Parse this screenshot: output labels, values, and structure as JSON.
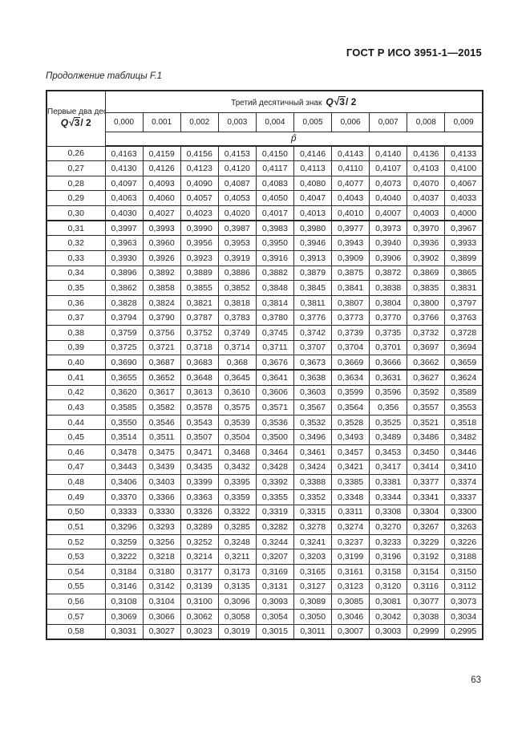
{
  "page": {
    "standard_ref": "ГОСТ Р ИСО 3951-1—2015",
    "table_caption": "Продолжение таблицы F.1",
    "page_number": "63"
  },
  "table": {
    "row_header_title": "Первые два десятичных знака",
    "col_header_title": "Третий десятичный знак",
    "formula": {
      "q": "Q",
      "radical": "√",
      "radicand": "3",
      "divisor": "/ 2"
    },
    "phat": "p̂",
    "columns": [
      "0,000",
      "0.001",
      "0,002",
      "0,003",
      "0,004",
      "0,005",
      "0,006",
      "0,007",
      "0,008",
      "0,009"
    ],
    "rows": [
      {
        "label": "0,26",
        "values": [
          "0,4163",
          "0,4159",
          "0,4156",
          "0,4153",
          "0,4150",
          "0,4146",
          "0,4143",
          "0,4140",
          "0,4136",
          "0,4133"
        ]
      },
      {
        "label": "0,27",
        "values": [
          "0,4130",
          "0,4126",
          "0,4123",
          "0,4120",
          "0,4117",
          "0,4113",
          "0,4110",
          "0,4107",
          "0,4103",
          "0,4100"
        ]
      },
      {
        "label": "0,28",
        "values": [
          "0,4097",
          "0,4093",
          "0,4090",
          "0,4087",
          "0,4083",
          "0,4080",
          "0,4077",
          "0,4073",
          "0,4070",
          "0,4067"
        ]
      },
      {
        "label": "0,29",
        "values": [
          "0,4063",
          "0,4060",
          "0,4057",
          "0,4053",
          "0,4050",
          "0,4047",
          "0,4043",
          "0,4040",
          "0,4037",
          "0,4033"
        ]
      },
      {
        "label": "0,30",
        "values": [
          "0,4030",
          "0,4027",
          "0,4023",
          "0,4020",
          "0,4017",
          "0,4013",
          "0,4010",
          "0,4007",
          "0,4003",
          "0,4000"
        ],
        "group_end": true
      },
      {
        "label": "0,31",
        "values": [
          "0,3997",
          "0,3993",
          "0,3990",
          "0,3987",
          "0,3983",
          "0,3980",
          "0,3977",
          "0,3973",
          "0,3970",
          "0,3967"
        ]
      },
      {
        "label": "0,32",
        "values": [
          "0,3963",
          "0,3960",
          "0,3956",
          "0,3953",
          "0,3950",
          "0,3946",
          "0,3943",
          "0,3940",
          "0,3936",
          "0,3933"
        ]
      },
      {
        "label": "0,33",
        "values": [
          "0,3930",
          "0,3926",
          "0,3923",
          "0,3919",
          "0,3916",
          "0,3913",
          "0,3909",
          "0,3906",
          "0,3902",
          "0,3899"
        ]
      },
      {
        "label": "0,34",
        "values": [
          "0,3896",
          "0,3892",
          "0,3889",
          "0,3886",
          "0,3882",
          "0,3879",
          "0,3875",
          "0,3872",
          "0,3869",
          "0,3865"
        ]
      },
      {
        "label": "0,35",
        "values": [
          "0,3862",
          "0,3858",
          "0,3855",
          "0,3852",
          "0,3848",
          "0,3845",
          "0,3841",
          "0,3838",
          "0,3835",
          "0,3831"
        ]
      },
      {
        "label": "0,36",
        "values": [
          "0,3828",
          "0,3824",
          "0,3821",
          "0,3818",
          "0,3814",
          "0,3811",
          "0,3807",
          "0,3804",
          "0,3800",
          "0,3797"
        ]
      },
      {
        "label": "0,37",
        "values": [
          "0,3794",
          "0,3790",
          "0,3787",
          "0,3783",
          "0,3780",
          "0,3776",
          "0,3773",
          "0,3770",
          "0,3766",
          "0,3763"
        ]
      },
      {
        "label": "0,38",
        "values": [
          "0,3759",
          "0,3756",
          "0,3752",
          "0,3749",
          "0,3745",
          "0,3742",
          "0,3739",
          "0,3735",
          "0,3732",
          "0,3728"
        ]
      },
      {
        "label": "0,39",
        "values": [
          "0,3725",
          "0,3721",
          "0,3718",
          "0,3714",
          "0,3711",
          "0,3707",
          "0,3704",
          "0,3701",
          "0,3697",
          "0,3694"
        ]
      },
      {
        "label": "0,40",
        "values": [
          "0,3690",
          "0,3687",
          "0,3683",
          "0,368",
          "0,3676",
          "0,3673",
          "0,3669",
          "0,3666",
          "0,3662",
          "0,3659"
        ],
        "group_end": true
      },
      {
        "label": "0,41",
        "values": [
          "0,3655",
          "0,3652",
          "0,3648",
          "0,3645",
          "0,3641",
          "0,3638",
          "0,3634",
          "0,3631",
          "0,3627",
          "0,3624"
        ]
      },
      {
        "label": "0,42",
        "values": [
          "0,3620",
          "0,3617",
          "0,3613",
          "0,3610",
          "0,3606",
          "0,3603",
          "0,3599",
          "0,3596",
          "0,3592",
          "0,3589"
        ]
      },
      {
        "label": "0,43",
        "values": [
          "0,3585",
          "0,3582",
          "0,3578",
          "0,3575",
          "0,3571",
          "0,3567",
          "0,3564",
          "0,356",
          "0,3557",
          "0,3553"
        ]
      },
      {
        "label": "0,44",
        "values": [
          "0,3550",
          "0,3546",
          "0,3543",
          "0,3539",
          "0,3536",
          "0,3532",
          "0,3528",
          "0,3525",
          "0,3521",
          "0,3518"
        ]
      },
      {
        "label": "0,45",
        "values": [
          "0,3514",
          "0,3511",
          "0,3507",
          "0,3504",
          "0,3500",
          "0,3496",
          "0,3493",
          "0,3489",
          "0,3486",
          "0,3482"
        ]
      },
      {
        "label": "0,46",
        "values": [
          "0,3478",
          "0,3475",
          "0,3471",
          "0,3468",
          "0,3464",
          "0,3461",
          "0,3457",
          "0,3453",
          "0,3450",
          "0,3446"
        ]
      },
      {
        "label": "0,47",
        "values": [
          "0,3443",
          "0,3439",
          "0,3435",
          "0,3432",
          "0,3428",
          "0,3424",
          "0,3421",
          "0,3417",
          "0,3414",
          "0,3410"
        ]
      },
      {
        "label": "0,48",
        "values": [
          "0,3406",
          "0,3403",
          "0,3399",
          "0,3395",
          "0,3392",
          "0,3388",
          "0,3385",
          "0,3381",
          "0,3377",
          "0,3374"
        ]
      },
      {
        "label": "0,49",
        "values": [
          "0,3370",
          "0,3366",
          "0,3363",
          "0,3359",
          "0,3355",
          "0,3352",
          "0,3348",
          "0,3344",
          "0,3341",
          "0,3337"
        ]
      },
      {
        "label": "0,50",
        "values": [
          "0,3333",
          "0,3330",
          "0,3326",
          "0,3322",
          "0,3319",
          "0,3315",
          "0,3311",
          "0,3308",
          "0,3304",
          "0,3300"
        ],
        "group_end": true
      },
      {
        "label": "0,51",
        "values": [
          "0,3296",
          "0,3293",
          "0,3289",
          "0,3285",
          "0,3282",
          "0,3278",
          "0,3274",
          "0,3270",
          "0,3267",
          "0,3263"
        ]
      },
      {
        "label": "0,52",
        "values": [
          "0,3259",
          "0,3256",
          "0,3252",
          "0,3248",
          "0,3244",
          "0,3241",
          "0,3237",
          "0,3233",
          "0,3229",
          "0,3226"
        ]
      },
      {
        "label": "0,53",
        "values": [
          "0,3222",
          "0,3218",
          "0,3214",
          "0,3211",
          "0,3207",
          "0,3203",
          "0,3199",
          "0,3196",
          "0,3192",
          "0,3188"
        ]
      },
      {
        "label": "0,54",
        "values": [
          "0,3184",
          "0,3180",
          "0,3177",
          "0,3173",
          "0,3169",
          "0,3165",
          "0,3161",
          "0,3158",
          "0,3154",
          "0,3150"
        ]
      },
      {
        "label": "0,55",
        "values": [
          "0,3146",
          "0,3142",
          "0,3139",
          "0,3135",
          "0,3131",
          "0,3127",
          "0,3123",
          "0,3120",
          "0,3116",
          "0,3112"
        ]
      },
      {
        "label": "0,56",
        "values": [
          "0,3108",
          "0,3104",
          "0,3100",
          "0,3096",
          "0,3093",
          "0,3089",
          "0,3085",
          "0,3081",
          "0,3077",
          "0,3073"
        ]
      },
      {
        "label": "0,57",
        "values": [
          "0,3069",
          "0,3066",
          "0,3062",
          "0,3058",
          "0,3054",
          "0,3050",
          "0,3046",
          "0,3042",
          "0,3038",
          "0,3034"
        ]
      },
      {
        "label": "0,58",
        "values": [
          "0,3031",
          "0,3027",
          "0,3023",
          "0,3019",
          "0,3015",
          "0,3011",
          "0,3007",
          "0,3003",
          "0,2999",
          "0,2995"
        ]
      }
    ]
  }
}
